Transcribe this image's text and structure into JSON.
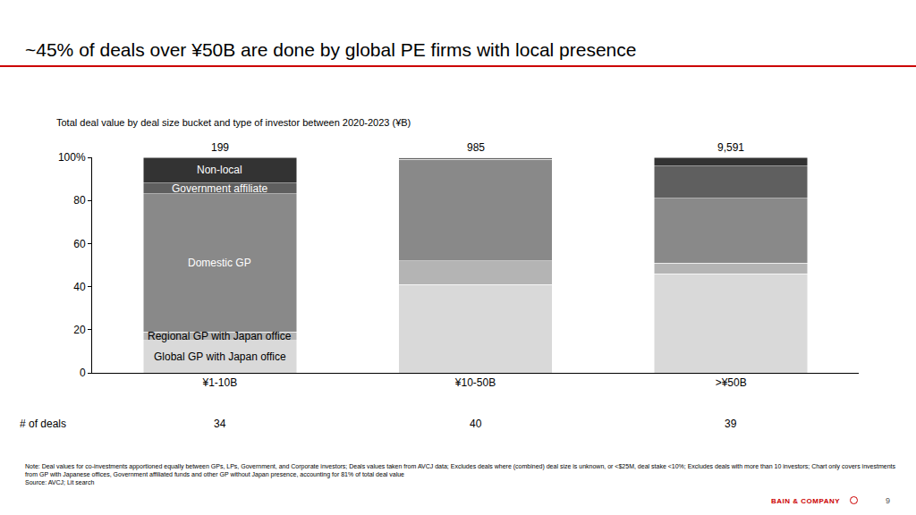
{
  "chart_data": {
    "type": "bar",
    "stacked": true,
    "title": "~45% of deals over ¥50B are done by global PE firms with local presence",
    "subtitle": "Total deal value by deal size bucket and type of investor between 2020-2023 (¥B)",
    "categories": [
      "¥1-10B",
      "¥10-50B",
      ">¥50B"
    ],
    "series": [
      {
        "name": "Global GP with Japan office",
        "color": "#d9d9d9",
        "values": [
          15,
          41,
          46
        ]
      },
      {
        "name": "Regional GP with Japan office",
        "color": "#b4b4b4",
        "values": [
          4,
          11,
          5
        ]
      },
      {
        "name": "Domestic GP",
        "color": "#898989",
        "values": [
          64,
          47,
          30
        ]
      },
      {
        "name": "Government affiliate",
        "color": "#5f5f5f",
        "values": [
          5,
          1,
          15
        ]
      },
      {
        "name": "Non-local",
        "color": "#333333",
        "values": [
          12,
          0,
          4
        ]
      }
    ],
    "ylim": [
      0,
      100
    ],
    "yticks": [
      0,
      20,
      40,
      60,
      80,
      {
        "value": 100,
        "label": "100%"
      }
    ],
    "grid": false,
    "totals": [
      199,
      985,
      9591
    ],
    "total_labels": [
      "199",
      "985",
      "9,591"
    ],
    "deal_count_label": "# of deals",
    "deal_counts": [
      34,
      40,
      39
    ],
    "note": "Note: Deal values for co-investments apportioned equally between GPs, LPs, Government, and Corporate investors;  Deals values taken from AVCJ data; Excludes deals where (combined) deal size is unknown, or <$25M, deal stake <10%; Excludes deals with more than 10 investors; Chart only covers investments from GP with Japanese offices, Government affiliated funds and other GP without Japan presence, accounting for 81% of total deal value",
    "source": "Source: AVCJ;  Lit search",
    "brand": "BAIN & COMPANY",
    "page_number": "9"
  }
}
